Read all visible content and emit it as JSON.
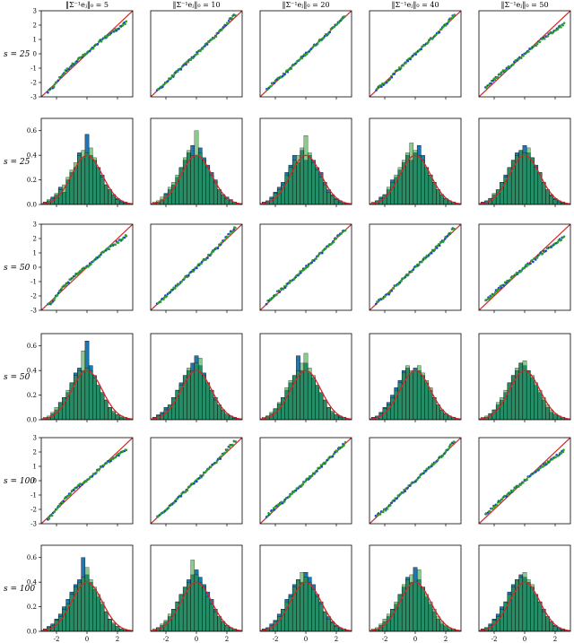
{
  "figure": {
    "columns": [
      "‖Σ⁻¹eⱼ‖₀ = 5",
      "‖Σ⁻¹eⱼ‖₀ = 10",
      "‖Σ⁻¹eⱼ‖₀ = 20",
      "‖Σ⁻¹eⱼ‖₀ = 40",
      "‖Σ⁻¹eⱼ‖₀ = 50"
    ],
    "rows": [
      {
        "label": "s = 25",
        "type": "qq"
      },
      {
        "label": "s = 25",
        "type": "hist"
      },
      {
        "label": "s = 50",
        "type": "qq"
      },
      {
        "label": "s = 50",
        "type": "hist"
      },
      {
        "label": "s = 100",
        "type": "qq"
      },
      {
        "label": "s = 100",
        "type": "hist"
      }
    ],
    "colors": {
      "blue": "#1f77b4",
      "green": "#2ca02c",
      "navy": "#1f3fd0",
      "red": "#d62728",
      "axis": "#000000"
    }
  },
  "chart_data": {
    "type": "grid",
    "qq": {
      "xlim": [
        -3,
        3
      ],
      "ylim": [
        -3,
        3
      ],
      "yticks": [
        -3,
        -2,
        -1,
        0,
        1,
        2,
        3
      ],
      "reference_line": {
        "x": [
          -3,
          3
        ],
        "y": [
          -3,
          3
        ]
      },
      "curve_by_panel": [
        [
          [
            -2.6,
            -2.7
          ],
          [
            -2.2,
            -2.3
          ],
          [
            -1.8,
            -1.7
          ],
          [
            -1.4,
            -1.2
          ],
          [
            -1.0,
            -0.8
          ],
          [
            -0.6,
            -0.4
          ],
          [
            -0.2,
            -0.1
          ],
          [
            0.2,
            0.2
          ],
          [
            0.6,
            0.6
          ],
          [
            1.0,
            1.0
          ],
          [
            1.4,
            1.3
          ],
          [
            1.8,
            1.6
          ],
          [
            2.2,
            1.9
          ],
          [
            2.6,
            2.2
          ]
        ],
        [
          [
            -2.6,
            -2.6
          ],
          [
            -2.2,
            -2.2
          ],
          [
            -1.8,
            -1.8
          ],
          [
            -1.4,
            -1.4
          ],
          [
            -1.0,
            -1.0
          ],
          [
            -0.6,
            -0.6
          ],
          [
            -0.2,
            -0.2
          ],
          [
            0.2,
            0.2
          ],
          [
            0.6,
            0.6
          ],
          [
            1.0,
            1.0
          ],
          [
            1.4,
            1.4
          ],
          [
            1.8,
            1.9
          ],
          [
            2.2,
            2.4
          ],
          [
            2.6,
            2.8
          ]
        ],
        [
          [
            -2.6,
            -2.5
          ],
          [
            -2.2,
            -2.1
          ],
          [
            -1.8,
            -1.7
          ],
          [
            -1.4,
            -1.4
          ],
          [
            -1.0,
            -1.0
          ],
          [
            -0.6,
            -0.6
          ],
          [
            -0.2,
            -0.2
          ],
          [
            0.2,
            0.2
          ],
          [
            0.6,
            0.6
          ],
          [
            1.0,
            1.0
          ],
          [
            1.4,
            1.4
          ],
          [
            1.8,
            1.8
          ],
          [
            2.2,
            2.3
          ],
          [
            2.6,
            2.6
          ]
        ],
        [
          [
            -2.6,
            -2.5
          ],
          [
            -2.2,
            -2.2
          ],
          [
            -1.8,
            -1.9
          ],
          [
            -1.4,
            -1.4
          ],
          [
            -1.0,
            -1.0
          ],
          [
            -0.6,
            -0.6
          ],
          [
            -0.2,
            -0.2
          ],
          [
            0.2,
            0.2
          ],
          [
            0.6,
            0.6
          ],
          [
            1.0,
            1.0
          ],
          [
            1.4,
            1.4
          ],
          [
            1.8,
            1.8
          ],
          [
            2.2,
            2.3
          ],
          [
            2.6,
            2.8
          ]
        ],
        [
          [
            -2.6,
            -2.4
          ],
          [
            -2.2,
            -2.0
          ],
          [
            -1.8,
            -1.6
          ],
          [
            -1.4,
            -1.2
          ],
          [
            -1.0,
            -0.9
          ],
          [
            -0.6,
            -0.5
          ],
          [
            -0.2,
            -0.2
          ],
          [
            0.2,
            0.2
          ],
          [
            0.6,
            0.5
          ],
          [
            1.0,
            0.9
          ],
          [
            1.4,
            1.2
          ],
          [
            1.8,
            1.5
          ],
          [
            2.2,
            1.8
          ],
          [
            2.6,
            2.1
          ]
        ]
      ]
    },
    "hist": {
      "xlim": [
        -3,
        3
      ],
      "ylim": [
        0,
        0.7
      ],
      "xticks": [
        -2,
        0,
        2
      ],
      "yticks": [
        0,
        0.2,
        0.4,
        0.6
      ],
      "bins": [
        -2.75,
        -2.5,
        -2.25,
        -2.0,
        -1.75,
        -1.5,
        -1.25,
        -1.0,
        -0.75,
        -0.5,
        -0.25,
        0.0,
        0.25,
        0.5,
        0.75,
        1.0,
        1.25,
        1.5,
        1.75,
        2.0,
        2.25,
        2.5,
        2.75
      ],
      "bin_width": 0.25,
      "density_blue": [
        [
          0.02,
          0.03,
          0.06,
          0.08,
          0.14,
          0.1,
          0.2,
          0.26,
          0.3,
          0.42,
          0.38,
          0.57,
          0.4,
          0.36,
          0.3,
          0.24,
          0.16,
          0.12,
          0.08,
          0.05,
          0.03,
          0.02,
          0.01
        ],
        [
          0.01,
          0.02,
          0.04,
          0.09,
          0.12,
          0.16,
          0.22,
          0.3,
          0.36,
          0.42,
          0.48,
          0.4,
          0.46,
          0.38,
          0.32,
          0.26,
          0.2,
          0.12,
          0.08,
          0.06,
          0.04,
          0.02,
          0.01
        ],
        [
          0.02,
          0.03,
          0.06,
          0.1,
          0.14,
          0.18,
          0.26,
          0.32,
          0.4,
          0.34,
          0.44,
          0.36,
          0.4,
          0.36,
          0.3,
          0.26,
          0.18,
          0.12,
          0.08,
          0.05,
          0.03,
          0.01,
          0.01
        ],
        [
          0.01,
          0.03,
          0.06,
          0.08,
          0.12,
          0.2,
          0.22,
          0.28,
          0.34,
          0.4,
          0.36,
          0.42,
          0.48,
          0.4,
          0.3,
          0.24,
          0.18,
          0.12,
          0.08,
          0.05,
          0.03,
          0.02,
          0.01
        ],
        [
          0.02,
          0.03,
          0.05,
          0.08,
          0.12,
          0.18,
          0.24,
          0.3,
          0.36,
          0.42,
          0.44,
          0.48,
          0.42,
          0.38,
          0.32,
          0.26,
          0.18,
          0.12,
          0.08,
          0.05,
          0.03,
          0.02,
          0.01
        ],
        [
          0.01,
          0.02,
          0.05,
          0.08,
          0.14,
          0.18,
          0.22,
          0.3,
          0.38,
          0.42,
          0.4,
          0.64,
          0.44,
          0.36,
          0.28,
          0.22,
          0.16,
          0.1,
          0.06,
          0.04,
          0.02,
          0.01,
          0.01
        ],
        [
          0.02,
          0.04,
          0.06,
          0.1,
          0.12,
          0.18,
          0.24,
          0.3,
          0.36,
          0.4,
          0.46,
          0.52,
          0.44,
          0.38,
          0.3,
          0.24,
          0.18,
          0.12,
          0.08,
          0.04,
          0.03,
          0.02,
          0.01
        ],
        [
          0.01,
          0.03,
          0.05,
          0.09,
          0.13,
          0.18,
          0.24,
          0.3,
          0.36,
          0.52,
          0.4,
          0.46,
          0.38,
          0.34,
          0.28,
          0.22,
          0.16,
          0.1,
          0.06,
          0.04,
          0.03,
          0.02,
          0.01
        ],
        [
          0.02,
          0.03,
          0.06,
          0.1,
          0.14,
          0.2,
          0.26,
          0.32,
          0.4,
          0.42,
          0.38,
          0.42,
          0.4,
          0.36,
          0.3,
          0.24,
          0.18,
          0.12,
          0.08,
          0.05,
          0.03,
          0.02,
          0.01
        ],
        [
          0.01,
          0.02,
          0.05,
          0.08,
          0.12,
          0.16,
          0.22,
          0.3,
          0.36,
          0.4,
          0.46,
          0.44,
          0.4,
          0.34,
          0.28,
          0.22,
          0.16,
          0.1,
          0.06,
          0.04,
          0.03,
          0.02,
          0.01
        ],
        [
          0.02,
          0.04,
          0.06,
          0.1,
          0.14,
          0.2,
          0.26,
          0.32,
          0.38,
          0.42,
          0.6,
          0.46,
          0.4,
          0.34,
          0.28,
          0.22,
          0.16,
          0.1,
          0.06,
          0.04,
          0.02,
          0.01,
          0.01
        ],
        [
          0.01,
          0.03,
          0.05,
          0.08,
          0.12,
          0.18,
          0.24,
          0.3,
          0.36,
          0.42,
          0.46,
          0.5,
          0.44,
          0.38,
          0.32,
          0.26,
          0.18,
          0.12,
          0.08,
          0.05,
          0.03,
          0.02,
          0.01
        ],
        [
          0.02,
          0.03,
          0.06,
          0.09,
          0.14,
          0.18,
          0.26,
          0.3,
          0.38,
          0.42,
          0.4,
          0.48,
          0.44,
          0.38,
          0.3,
          0.24,
          0.16,
          0.12,
          0.08,
          0.05,
          0.03,
          0.02,
          0.01
        ],
        [
          0.01,
          0.02,
          0.05,
          0.08,
          0.12,
          0.18,
          0.22,
          0.3,
          0.36,
          0.44,
          0.4,
          0.52,
          0.42,
          0.36,
          0.28,
          0.22,
          0.16,
          0.1,
          0.06,
          0.04,
          0.02,
          0.02,
          0.01
        ],
        [
          0.02,
          0.03,
          0.06,
          0.1,
          0.14,
          0.2,
          0.24,
          0.32,
          0.38,
          0.42,
          0.46,
          0.44,
          0.4,
          0.36,
          0.3,
          0.24,
          0.18,
          0.12,
          0.08,
          0.05,
          0.03,
          0.02,
          0.01
        ]
      ],
      "density_green": [
        [
          0.01,
          0.04,
          0.05,
          0.09,
          0.12,
          0.16,
          0.22,
          0.28,
          0.34,
          0.4,
          0.44,
          0.42,
          0.46,
          0.38,
          0.3,
          0.22,
          0.16,
          0.12,
          0.08,
          0.04,
          0.02,
          0.01,
          0.01
        ],
        [
          0.02,
          0.03,
          0.06,
          0.08,
          0.14,
          0.18,
          0.24,
          0.3,
          0.38,
          0.44,
          0.4,
          0.6,
          0.42,
          0.36,
          0.3,
          0.24,
          0.18,
          0.12,
          0.08,
          0.05,
          0.03,
          0.02,
          0.01
        ],
        [
          0.01,
          0.02,
          0.05,
          0.09,
          0.12,
          0.16,
          0.24,
          0.3,
          0.36,
          0.4,
          0.46,
          0.56,
          0.42,
          0.34,
          0.28,
          0.22,
          0.16,
          0.1,
          0.07,
          0.04,
          0.02,
          0.01,
          0.01
        ],
        [
          0.02,
          0.03,
          0.05,
          0.08,
          0.14,
          0.18,
          0.24,
          0.3,
          0.36,
          0.42,
          0.5,
          0.44,
          0.4,
          0.36,
          0.3,
          0.24,
          0.18,
          0.12,
          0.08,
          0.05,
          0.03,
          0.02,
          0.01
        ],
        [
          0.01,
          0.02,
          0.05,
          0.09,
          0.12,
          0.18,
          0.22,
          0.3,
          0.36,
          0.4,
          0.44,
          0.42,
          0.46,
          0.38,
          0.3,
          0.26,
          0.18,
          0.12,
          0.07,
          0.04,
          0.02,
          0.01,
          0.01
        ],
        [
          0.02,
          0.03,
          0.06,
          0.1,
          0.14,
          0.18,
          0.24,
          0.3,
          0.36,
          0.4,
          0.56,
          0.42,
          0.4,
          0.34,
          0.28,
          0.22,
          0.16,
          0.1,
          0.07,
          0.04,
          0.03,
          0.02,
          0.01
        ],
        [
          0.01,
          0.03,
          0.05,
          0.08,
          0.12,
          0.18,
          0.24,
          0.28,
          0.36,
          0.42,
          0.4,
          0.46,
          0.5,
          0.36,
          0.3,
          0.24,
          0.16,
          0.12,
          0.08,
          0.05,
          0.03,
          0.01,
          0.01
        ],
        [
          0.02,
          0.03,
          0.06,
          0.09,
          0.14,
          0.18,
          0.26,
          0.32,
          0.36,
          0.4,
          0.46,
          0.54,
          0.42,
          0.36,
          0.28,
          0.22,
          0.16,
          0.1,
          0.07,
          0.04,
          0.02,
          0.02,
          0.01
        ],
        [
          0.01,
          0.02,
          0.05,
          0.09,
          0.12,
          0.18,
          0.24,
          0.3,
          0.38,
          0.44,
          0.4,
          0.4,
          0.44,
          0.38,
          0.32,
          0.26,
          0.18,
          0.12,
          0.08,
          0.05,
          0.03,
          0.02,
          0.01
        ],
        [
          0.02,
          0.03,
          0.05,
          0.08,
          0.14,
          0.18,
          0.24,
          0.3,
          0.36,
          0.42,
          0.46,
          0.48,
          0.4,
          0.36,
          0.3,
          0.24,
          0.18,
          0.12,
          0.08,
          0.05,
          0.03,
          0.02,
          0.01
        ],
        [
          0.01,
          0.03,
          0.05,
          0.09,
          0.12,
          0.18,
          0.22,
          0.3,
          0.36,
          0.4,
          0.44,
          0.52,
          0.42,
          0.36,
          0.3,
          0.24,
          0.16,
          0.1,
          0.07,
          0.04,
          0.02,
          0.01,
          0.01
        ],
        [
          0.02,
          0.03,
          0.06,
          0.09,
          0.14,
          0.18,
          0.24,
          0.3,
          0.36,
          0.4,
          0.58,
          0.46,
          0.4,
          0.36,
          0.28,
          0.22,
          0.16,
          0.12,
          0.08,
          0.05,
          0.03,
          0.02,
          0.01
        ],
        [
          0.01,
          0.02,
          0.05,
          0.08,
          0.12,
          0.18,
          0.24,
          0.28,
          0.36,
          0.42,
          0.48,
          0.44,
          0.4,
          0.34,
          0.28,
          0.22,
          0.16,
          0.1,
          0.07,
          0.04,
          0.02,
          0.02,
          0.01
        ],
        [
          0.02,
          0.03,
          0.06,
          0.1,
          0.14,
          0.18,
          0.24,
          0.3,
          0.38,
          0.42,
          0.46,
          0.4,
          0.5,
          0.36,
          0.3,
          0.24,
          0.18,
          0.12,
          0.08,
          0.05,
          0.03,
          0.02,
          0.01
        ],
        [
          0.01,
          0.03,
          0.05,
          0.09,
          0.12,
          0.18,
          0.24,
          0.3,
          0.36,
          0.42,
          0.44,
          0.48,
          0.42,
          0.38,
          0.3,
          0.24,
          0.16,
          0.12,
          0.08,
          0.04,
          0.02,
          0.01,
          0.01
        ]
      ],
      "normal_curve": {
        "mean": 0,
        "sd": 1
      }
    }
  }
}
